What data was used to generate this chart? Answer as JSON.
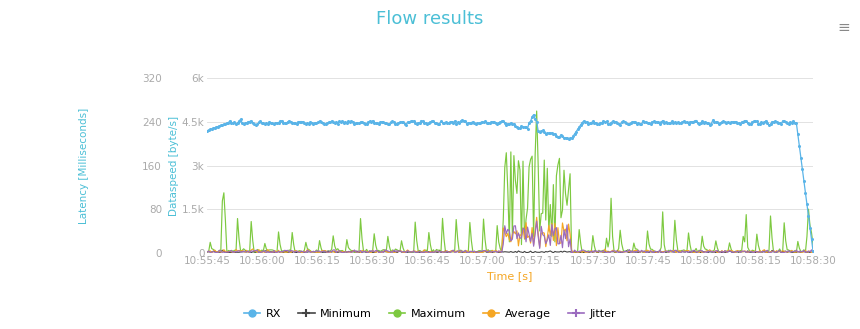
{
  "title": "Flow results",
  "title_color": "#4bbfd6",
  "xlabel": "Time [s]",
  "xlabel_color": "#f5a623",
  "ylabel_left": "Latency [Milliseconds]",
  "ylabel_right_label": "Dataspeed [byte/s]",
  "ylabel_color": "#4bbfd6",
  "x_tick_labels": [
    "10:55:45",
    "10:56:00",
    "10:56:15",
    "10:56:30",
    "10:56:45",
    "10:57:00",
    "10:57:15",
    "10:57:30",
    "10:57:45",
    "10:58:00",
    "10:58:15",
    "10:58:30"
  ],
  "yticks_left_vals": [
    0,
    80,
    160,
    240,
    320
  ],
  "yticks_left_labels": [
    "0",
    "80",
    "160",
    "240",
    "320"
  ],
  "yticks_right_vals": [
    0,
    1500,
    3000,
    4500,
    6000
  ],
  "yticks_right_labels": [
    "0",
    "1.5k",
    "3k",
    "4.5k",
    "6k"
  ],
  "ylim_left": [
    0,
    320
  ],
  "ylim_right": [
    0,
    6000
  ],
  "background_color": "#ffffff",
  "grid_color": "#dddddd",
  "rx_color": "#5ab4e8",
  "min_color": "#444444",
  "max_color": "#7dc940",
  "avg_color": "#f5a623",
  "jitter_color": "#9b6bbf",
  "figsize": [
    8.6,
    3.29
  ],
  "dpi": 100,
  "tick_color": "#aaaaaa",
  "spine_color": "#dddddd"
}
